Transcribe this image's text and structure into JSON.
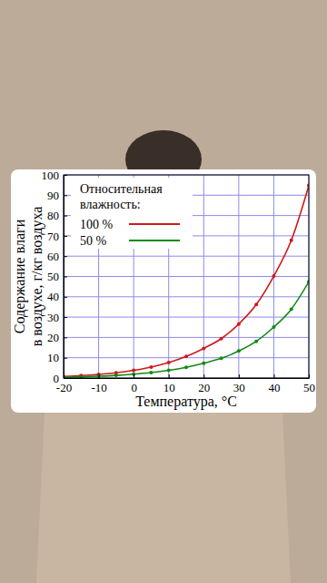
{
  "chart_data": {
    "type": "line",
    "x_label": "Температура, °C",
    "y_label": [
      "Содержание влаги",
      "в воздухе, г/кг воздуха"
    ],
    "legend_title": [
      "Относительная",
      "влажность:"
    ],
    "x": [
      -20,
      -15,
      -10,
      -5,
      0,
      5,
      10,
      15,
      20,
      25,
      30,
      35,
      40,
      45,
      50
    ],
    "series": [
      {
        "name": "100 %",
        "color": "#d01818",
        "marker": "dot",
        "values": [
          0.8,
          1.2,
          1.8,
          2.6,
          3.8,
          5.4,
          7.6,
          10.6,
          14.6,
          19.4,
          26.6,
          36.2,
          50.2,
          67.8,
          94.8
        ]
      },
      {
        "name": "50 %",
        "color": "#128a12",
        "marker": "dot",
        "values": [
          0.4,
          0.6,
          0.9,
          1.3,
          1.9,
          2.7,
          3.8,
          5.3,
          7.3,
          9.7,
          13.3,
          18.1,
          25.1,
          33.9,
          47.4
        ]
      }
    ],
    "xlim": [
      -20,
      50
    ],
    "ylim": [
      0,
      100
    ],
    "xticks": [
      -20,
      -10,
      0,
      10,
      20,
      30,
      40,
      50
    ],
    "yticks": [
      0,
      10,
      20,
      30,
      40,
      50,
      60,
      70,
      80,
      90,
      100
    ],
    "grid": true,
    "legend": "top-left"
  }
}
